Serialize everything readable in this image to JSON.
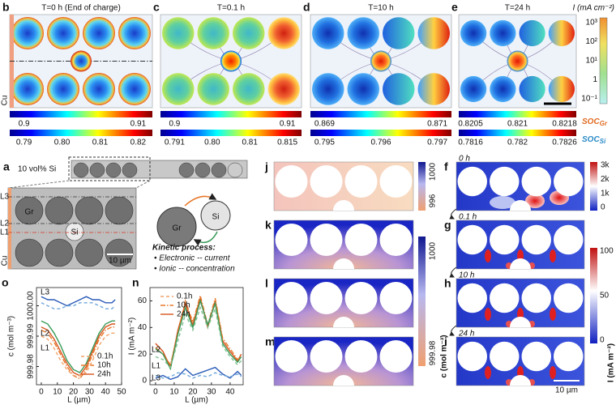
{
  "top_row": [
    {
      "letter": "b",
      "title": "T=0 h (End of charge)",
      "soc_gr_ticks": [
        "0.9",
        "0.91"
      ],
      "soc_si_ticks": [
        "0.79",
        "0.80",
        "0.81",
        "0.82"
      ]
    },
    {
      "letter": "c",
      "title": "T=0.1 h",
      "soc_gr_ticks": [
        "0.9",
        "0.91"
      ],
      "soc_si_ticks": [
        "0.791",
        "0.80",
        "0.81",
        "0.815"
      ]
    },
    {
      "letter": "d",
      "title": "T=10 h",
      "soc_gr_ticks": [
        "0.869",
        "0.871"
      ],
      "soc_si_ticks": [
        "0.795",
        "0.796",
        "0.797"
      ]
    },
    {
      "letter": "e",
      "title": "T=24 h",
      "soc_gr_ticks": [
        "0.8205",
        "0.821",
        "0.8218"
      ],
      "soc_si_ticks": [
        "0.7816",
        "0.782",
        "0.7826"
      ]
    }
  ],
  "cu_label": "Cu",
  "current_colorbar": {
    "label": "I (mA cm⁻²)",
    "ticks": [
      "10³",
      "10²",
      "10¹",
      "1",
      "10⁻¹"
    ]
  },
  "soc_labels": [
    {
      "main": "SOC",
      "sub": "Gr"
    },
    {
      "main": "SOC",
      "sub": "Si"
    }
  ],
  "panel_a": {
    "letter": "a",
    "loading": "10 vol% Si",
    "lines": [
      "L3",
      "L2",
      "L1"
    ],
    "gr": "Gr",
    "si": "Si",
    "cu": "Cu",
    "scale": "10 µm",
    "schematic_gr": "Gr",
    "schematic_si": "Si",
    "kinetic_title": "Kinetic process:",
    "bullets": [
      "• Electronic -- current",
      "• Ionic -- concentration"
    ]
  },
  "concentration_maps": {
    "letters": [
      "j",
      "k",
      "l",
      "m"
    ],
    "colorbar_top_ticks": [
      "1000",
      "996"
    ],
    "colorbar_bottom_ticks": [
      "1000",
      "999.98"
    ],
    "label": "c (mol m⁻³)"
  },
  "current_maps": {
    "letters": [
      "f",
      "g",
      "h",
      "i"
    ],
    "times": [
      "0 h",
      "0.1 h",
      "10 h",
      "24 h"
    ],
    "colorbar_top_ticks": [
      "3k",
      "2k",
      "1k",
      "0"
    ],
    "colorbar_bottom_ticks": [
      "100",
      "50",
      "0"
    ],
    "label": "I (mA m⁻²)",
    "scale": "10 µm"
  },
  "charts": [
    {
      "letter": "o",
      "type": "line",
      "x_label": "L (µm)",
      "y_label": "c (mol m⁻³)",
      "x": [
        0,
        4,
        8,
        12,
        16,
        20,
        24,
        28,
        32,
        36,
        40,
        44,
        46
      ],
      "xlim": [
        -3,
        50
      ],
      "xticks": [
        0,
        10,
        20,
        30,
        40,
        50
      ],
      "ylim": [
        999.974,
        1000.006
      ],
      "yticks": [
        999.98,
        999.99,
        {
          "value": 1000,
          "label": "1000.00"
        }
      ],
      "legend": [
        {
          "label": "0.1h",
          "color": "#f2a36a",
          "dash": "dashed"
        },
        {
          "label": "10h",
          "color": "#e8782a",
          "dash": "dash-dot"
        },
        {
          "label": "24h",
          "color": "#d9541c",
          "dash": "solid"
        }
      ],
      "series": [
        {
          "color": "#2a5bb8",
          "dash": "solid",
          "values": [
            1000.003,
            1000.002,
            1000.002,
            1000.001,
            1000.0,
            1000.001,
            1000.002,
            1000.003,
            1000.002,
            1000.002,
            1000.001,
            1000.001,
            1000.002
          ]
        },
        {
          "color": "#6fa8dc",
          "dash": "dashed",
          "values": [
            1000.001,
            1000.0,
            999.999,
            999.999,
            1000.0,
            1000.0,
            1000.001,
            1000.001,
            1000.001,
            1000.0,
            999.999,
            999.999,
            1000.0
          ]
        },
        {
          "color": "#3a9a5a",
          "dash": "solid",
          "values": [
            999.995,
            999.994,
            999.991,
            999.987,
            999.982,
            999.979,
            999.978,
            999.981,
            999.986,
            999.991,
            999.994,
            999.995,
            999.995
          ]
        },
        {
          "color": "#d9541c",
          "dash": "solid",
          "values": [
            999.993,
            999.992,
            999.989,
            999.985,
            999.981,
            999.978,
            999.977,
            999.98,
            999.985,
            999.99,
            999.993,
            999.994,
            999.994
          ]
        },
        {
          "color": "#e8782a",
          "dash": "dash-dot",
          "values": [
            999.992,
            999.991,
            999.988,
            999.984,
            999.98,
            999.977,
            999.976,
            999.979,
            999.984,
            999.989,
            999.992,
            999.993,
            999.993
          ]
        },
        {
          "color": "#f2a36a",
          "dash": "dashed",
          "values": [
            999.99,
            999.989,
            999.986,
            999.982,
            999.979,
            999.977,
            999.977,
            999.978,
            999.982,
            999.987,
            999.99,
            999.991,
            999.991
          ]
        }
      ],
      "line_labels": [
        {
          "text": "L3",
          "color": "#2a5bb8"
        },
        {
          "text": "L2",
          "color": "#3a9a5a"
        },
        {
          "text": "L1",
          "color": "#d9341c"
        }
      ]
    },
    {
      "letter": "n",
      "type": "line",
      "x_label": "L (µm)",
      "y_label": "I (mA m⁻²)",
      "x": [
        0,
        4,
        8,
        12,
        16,
        20,
        24,
        28,
        32,
        36,
        40,
        44,
        46
      ],
      "xlim": [
        -3,
        47
      ],
      "xticks": [
        0,
        10,
        20,
        30,
        40
      ],
      "ylim": [
        -3,
        70
      ],
      "yticks": [
        0,
        20,
        40,
        60
      ],
      "legend": [
        {
          "label": "0.1h",
          "color": "#f2a36a",
          "dash": "dashed"
        },
        {
          "label": "10h",
          "color": "#e8782a",
          "dash": "dash-dot"
        },
        {
          "label": "24h",
          "color": "#d9541c",
          "dash": "solid"
        }
      ],
      "series": [
        {
          "color": "#d9541c",
          "dash": "solid",
          "values": [
            28,
            22,
            10,
            38,
            58,
            42,
            62,
            40,
            60,
            30,
            22,
            15,
            20
          ]
        },
        {
          "color": "#e8782a",
          "dash": "dash-dot",
          "values": [
            25,
            20,
            12,
            36,
            60,
            44,
            64,
            42,
            62,
            32,
            24,
            16,
            18
          ]
        },
        {
          "color": "#3a9a5a",
          "dash": "solid",
          "values": [
            24,
            20,
            9,
            35,
            55,
            40,
            60,
            42,
            58,
            28,
            20,
            14,
            18
          ]
        },
        {
          "color": "#7cc08e",
          "dash": "dashed",
          "values": [
            18,
            16,
            10,
            30,
            50,
            38,
            55,
            40,
            54,
            26,
            18,
            12,
            15
          ]
        },
        {
          "color": "#2a5bb8",
          "dash": "solid",
          "values": [
            2,
            4,
            1,
            3,
            9,
            4,
            6,
            8,
            10,
            5,
            2,
            7,
            4
          ]
        },
        {
          "color": "#6fa8dc",
          "dash": "dashed",
          "values": [
            4,
            2,
            3,
            6,
            5,
            2,
            4,
            3,
            6,
            4,
            3,
            5,
            3
          ]
        }
      ],
      "line_labels": [
        {
          "text": "L2",
          "color": "#3a9a5a"
        },
        {
          "text": "L1",
          "color": "#d9341c"
        },
        {
          "text": "L3",
          "color": "#2a5bb8"
        }
      ]
    }
  ]
}
